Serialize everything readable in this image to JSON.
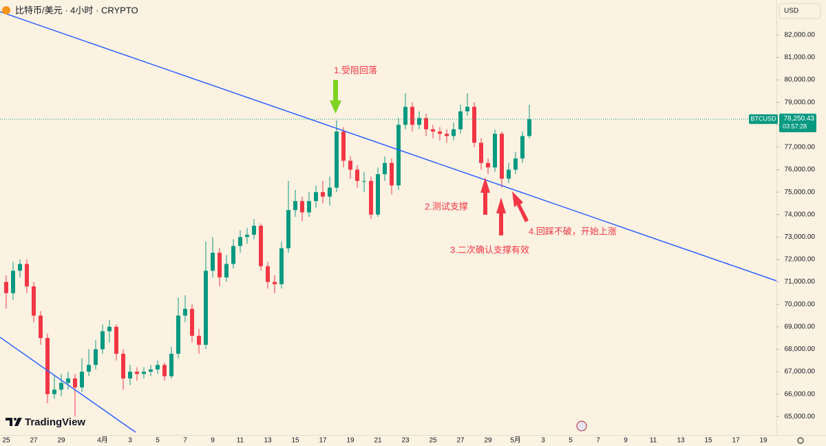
{
  "chart_data": {
    "type": "candlestick",
    "title": "比特币/美元 · 4小时 · CRYPTO",
    "currency": "USD",
    "symbol": "BTCUSD",
    "last_price": {
      "value": 78250.43,
      "label": "78,250.43"
    },
    "countdown": "03:57:28",
    "brand": "TradingView",
    "annotations": [
      "1.受阻回落",
      "2.测试支撑",
      "3.二次确认支撑有效",
      "4.回踩不破，开始上涨"
    ],
    "up_color": "#089981",
    "down_color": "#f23645",
    "grid": false,
    "ylim": [
      64180,
      83560
    ],
    "yticks": [
      {
        "value": 65000,
        "label": "65,000.00"
      },
      {
        "value": 66000,
        "label": "66,000.00"
      },
      {
        "value": 67000,
        "label": "67,000.00"
      },
      {
        "value": 68000,
        "label": "68,000.00"
      },
      {
        "value": 69000,
        "label": "69,000.00"
      },
      {
        "value": 70000,
        "label": "70,000.00"
      },
      {
        "value": 71000,
        "label": "71,000.00"
      },
      {
        "value": 72000,
        "label": "72,000.00"
      },
      {
        "value": 73000,
        "label": "73,000.00"
      },
      {
        "value": 74000,
        "label": "74,000.00"
      },
      {
        "value": 75000,
        "label": "75,000.00"
      },
      {
        "value": 76000,
        "label": "76,000.00"
      },
      {
        "value": 77000,
        "label": "77,000.00"
      },
      {
        "value": 78000,
        "label": "78,000.00"
      },
      {
        "value": 79000,
        "label": "79,000.00"
      },
      {
        "value": 80000,
        "label": "80,000.00"
      },
      {
        "value": 81000,
        "label": "81,000.00"
      },
      {
        "value": 82000,
        "label": "82,000.00"
      }
    ],
    "categories": [
      "25",
      null,
      null,
      null,
      "27",
      null,
      null,
      null,
      "29",
      null,
      null,
      null,
      null,
      null,
      "4月",
      null,
      null,
      null,
      "3",
      null,
      null,
      null,
      "5",
      null,
      null,
      null,
      "7",
      null,
      null,
      null,
      "9",
      null,
      null,
      null,
      "11",
      null,
      null,
      null,
      "13",
      null,
      null,
      null,
      "15",
      null,
      null,
      null,
      "17",
      null,
      null,
      null,
      "19",
      null,
      null,
      null,
      "21",
      null,
      null,
      null,
      "23",
      null,
      null,
      null,
      "25",
      null,
      null,
      null,
      "27",
      null,
      null,
      null,
      "29",
      null,
      null,
      null,
      "5月",
      null,
      null,
      null,
      "3",
      null,
      null,
      null,
      "5",
      null,
      null,
      null,
      "7",
      null,
      null,
      null,
      "9",
      null,
      null,
      null,
      "11",
      null,
      null,
      null,
      "13",
      null,
      null,
      null,
      "15",
      null,
      null,
      null,
      "17",
      null,
      null,
      null,
      "19",
      null
    ],
    "open": [
      71000,
      70500,
      71500,
      71800,
      70800,
      69500,
      68500,
      66000,
      66200,
      66500,
      66700,
      66300,
      67000,
      67300,
      68000,
      68800,
      69000,
      67800,
      66700,
      67000,
      66900,
      67000,
      67100,
      67300,
      66800,
      67800,
      69500,
      69800,
      68600,
      68200,
      71500,
      72300,
      71200,
      71800,
      72600,
      73000,
      73100,
      73500,
      71700,
      71000,
      70900,
      72500,
      74200,
      74600,
      74100,
      74600,
      75000,
      74800,
      75200,
      77700,
      76400,
      76000,
      75500,
      75500,
      74000,
      75800,
      76300,
      75300,
      78000,
      78800,
      78000,
      78300,
      77800,
      77700,
      77600,
      77500,
      77800,
      78600,
      78800,
      77200,
      76300,
      76100,
      77600,
      75600,
      76000,
      76500,
      77500,
      null,
      null,
      null,
      null,
      null,
      null,
      null,
      null,
      null,
      null,
      null,
      null,
      null,
      null,
      null,
      null,
      null,
      null,
      null,
      null,
      null,
      null,
      null,
      null,
      null,
      null,
      null,
      null,
      null,
      null,
      null,
      null,
      null,
      null,
      null
    ],
    "high": [
      71300,
      71900,
      72000,
      72000,
      71000,
      69700,
      68700,
      66800,
      66900,
      67000,
      66900,
      67600,
      68000,
      68400,
      69100,
      69300,
      69100,
      68000,
      67300,
      67200,
      67200,
      67300,
      67500,
      67400,
      68100,
      70300,
      70400,
      70000,
      68900,
      72800,
      73000,
      72500,
      72200,
      72900,
      73300,
      73400,
      73800,
      73600,
      71900,
      71300,
      72800,
      75500,
      75100,
      74800,
      75000,
      75300,
      75500,
      75700,
      78200,
      77900,
      76600,
      76200,
      75900,
      75700,
      76100,
      76600,
      76500,
      78300,
      79400,
      79000,
      78600,
      78500,
      78000,
      77900,
      77800,
      78100,
      78900,
      79400,
      79000,
      77400,
      76500,
      77800,
      77700,
      76300,
      76800,
      77700,
      78900,
      null,
      null,
      null,
      null,
      null,
      null,
      null,
      null,
      null,
      null,
      null,
      null,
      null,
      null,
      null,
      null,
      null,
      null,
      null,
      null,
      null,
      null,
      null,
      null,
      null,
      null,
      null,
      null,
      null,
      null,
      null,
      null,
      null,
      null,
      null
    ],
    "low": [
      69800,
      70200,
      71200,
      70500,
      69200,
      68200,
      65600,
      65800,
      65900,
      66200,
      65000,
      66100,
      66800,
      67100,
      67800,
      68300,
      67500,
      66200,
      66400,
      66600,
      66700,
      66800,
      66900,
      66600,
      66700,
      67600,
      69200,
      68300,
      67800,
      68000,
      71200,
      70800,
      71000,
      71600,
      72300,
      72700,
      72900,
      71500,
      70700,
      70500,
      70700,
      72300,
      73900,
      73700,
      73900,
      74300,
      74500,
      74400,
      75000,
      76100,
      75600,
      75200,
      75000,
      73800,
      73900,
      75500,
      74900,
      75100,
      77800,
      77700,
      77800,
      77500,
      77400,
      77300,
      77200,
      77300,
      77600,
      78400,
      77000,
      76000,
      75800,
      75900,
      75200,
      75400,
      75800,
      76300,
      77400,
      null,
      null,
      null,
      null,
      null,
      null,
      null,
      null,
      null,
      null,
      null,
      null,
      null,
      null,
      null,
      null,
      null,
      null,
      null,
      null,
      null,
      null,
      null,
      null,
      null,
      null,
      null,
      null,
      null,
      null,
      null,
      null,
      null,
      null,
      null
    ],
    "close": [
      70500,
      71500,
      71800,
      70800,
      69500,
      68500,
      66000,
      66200,
      66500,
      66700,
      66300,
      67000,
      67300,
      68000,
      68800,
      69000,
      67800,
      66700,
      67000,
      66900,
      67000,
      67100,
      67300,
      66800,
      67800,
      69500,
      69800,
      68600,
      68200,
      71500,
      72300,
      71200,
      71800,
      72600,
      73000,
      73100,
      73500,
      71700,
      71000,
      70900,
      72500,
      74200,
      74600,
      74100,
      74600,
      75000,
      74800,
      75200,
      77700,
      76400,
      76000,
      75500,
      75500,
      74000,
      75800,
      76300,
      75300,
      78000,
      78800,
      78000,
      78300,
      77800,
      77700,
      77600,
      77500,
      77800,
      78600,
      78800,
      77200,
      76300,
      76100,
      77600,
      75600,
      76000,
      76500,
      77500,
      78250.43,
      null,
      null,
      null,
      null,
      null,
      null,
      null,
      null,
      null,
      null,
      null,
      null,
      null,
      null,
      null,
      null,
      null,
      null,
      null,
      null,
      null,
      null,
      null,
      null,
      null,
      null,
      null,
      null,
      null,
      null,
      null,
      null,
      null,
      null,
      null
    ]
  }
}
